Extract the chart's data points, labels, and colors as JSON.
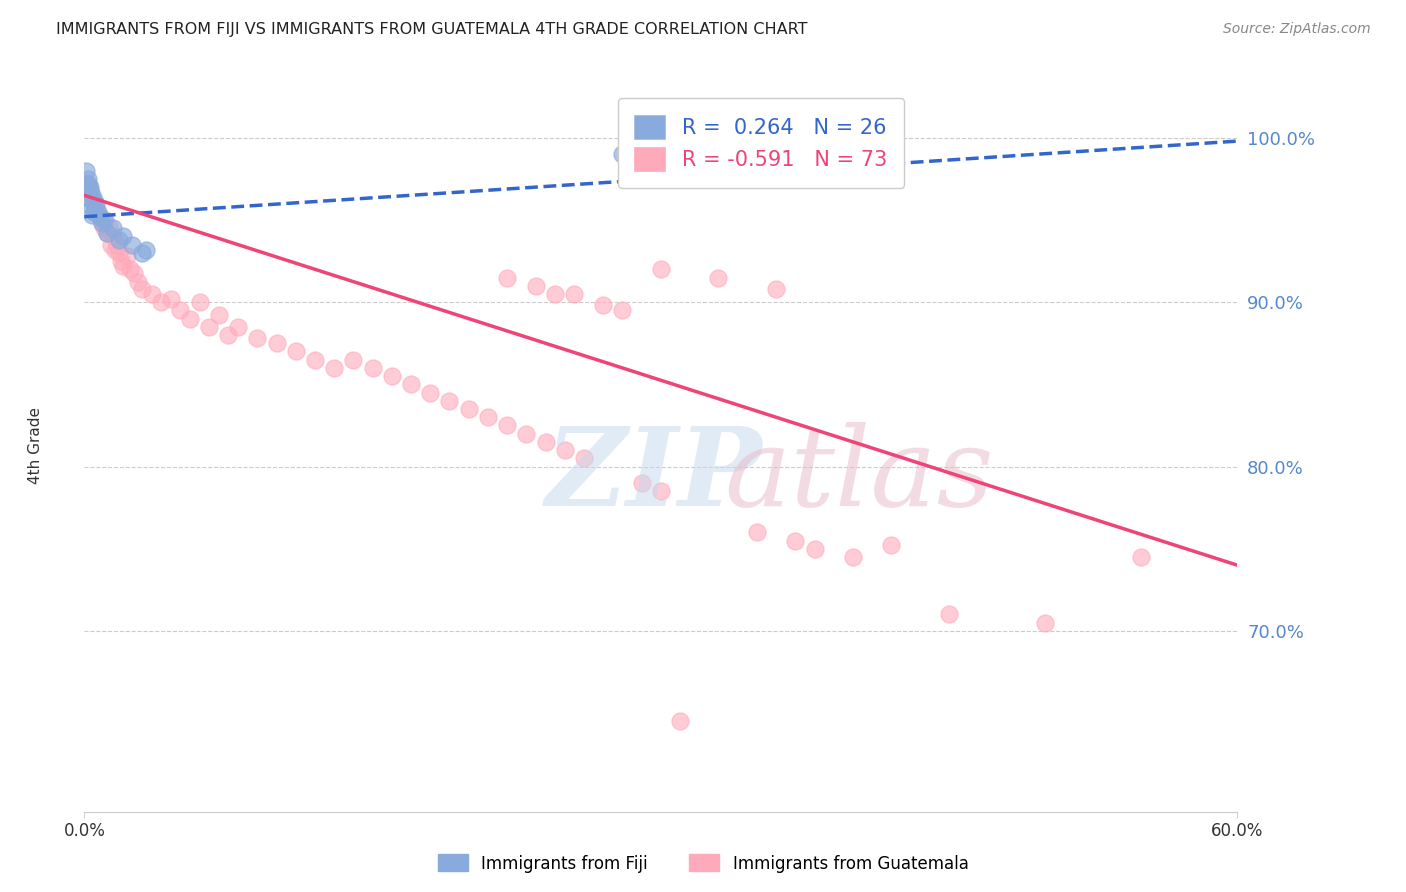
{
  "title": "IMMIGRANTS FROM FIJI VS IMMIGRANTS FROM GUATEMALA 4TH GRADE CORRELATION CHART",
  "source": "Source: ZipAtlas.com",
  "ylabel": "4th Grade",
  "xlim": [
    0.0,
    60.0
  ],
  "ylim": [
    59.0,
    103.5
  ],
  "ytick_vals": [
    70.0,
    80.0,
    90.0,
    100.0
  ],
  "xtick_vals": [
    0.0,
    60.0
  ],
  "fiji_color": "#88aadd",
  "guatemala_color": "#ffaabb",
  "fiji_line_color": "#3366cc",
  "guatemala_line_color": "#ee4477",
  "fiji_R": 0.264,
  "fiji_N": 26,
  "guatemala_R": -0.591,
  "guatemala_N": 73,
  "axis_label_color": "#5588cc",
  "fiji_scatter_x": [
    0.1,
    0.2,
    0.3,
    0.3,
    0.4,
    0.4,
    0.5,
    0.5,
    0.6,
    0.7,
    0.8,
    0.9,
    1.0,
    1.2,
    1.5,
    1.8,
    2.0,
    2.5,
    3.0,
    3.2,
    0.2,
    0.3,
    0.4,
    28.0,
    33.0,
    36.0
  ],
  "fiji_scatter_y": [
    98.0,
    97.5,
    97.0,
    96.8,
    96.5,
    95.8,
    96.2,
    95.5,
    96.0,
    95.5,
    95.2,
    94.8,
    95.0,
    94.2,
    94.5,
    93.8,
    94.0,
    93.5,
    93.0,
    93.2,
    97.2,
    96.3,
    95.3,
    99.0,
    99.5,
    99.5
  ],
  "guatemala_scatter_x": [
    0.1,
    0.2,
    0.3,
    0.4,
    0.5,
    0.6,
    0.7,
    0.8,
    0.9,
    1.0,
    1.1,
    1.2,
    1.3,
    1.4,
    1.5,
    1.6,
    1.7,
    1.8,
    1.9,
    2.0,
    2.2,
    2.4,
    2.6,
    2.8,
    3.0,
    3.5,
    4.0,
    4.5,
    5.0,
    6.0,
    7.0,
    8.0,
    9.0,
    10.0,
    11.0,
    12.0,
    13.0,
    14.0,
    15.0,
    16.0,
    17.0,
    18.0,
    19.0,
    20.0,
    21.0,
    22.0,
    23.0,
    24.0,
    25.0,
    26.0,
    22.0,
    23.5,
    24.5,
    25.5,
    27.0,
    28.0,
    29.0,
    30.0,
    35.0,
    37.0,
    38.0,
    40.0,
    42.0,
    45.0,
    50.0,
    55.0,
    30.0,
    33.0,
    36.0,
    5.5,
    6.5,
    7.5,
    31.0
  ],
  "guatemala_scatter_y": [
    97.2,
    96.8,
    96.5,
    96.2,
    96.0,
    95.7,
    95.4,
    95.1,
    94.8,
    94.5,
    95.0,
    94.2,
    94.6,
    93.5,
    94.0,
    93.2,
    93.5,
    93.0,
    92.5,
    92.2,
    92.8,
    92.0,
    91.8,
    91.2,
    90.8,
    90.5,
    90.0,
    90.2,
    89.5,
    90.0,
    89.2,
    88.5,
    87.8,
    87.5,
    87.0,
    86.5,
    86.0,
    86.5,
    86.0,
    85.5,
    85.0,
    84.5,
    84.0,
    83.5,
    83.0,
    82.5,
    82.0,
    81.5,
    81.0,
    80.5,
    91.5,
    91.0,
    90.5,
    90.5,
    89.8,
    89.5,
    79.0,
    78.5,
    76.0,
    75.5,
    75.0,
    74.5,
    75.2,
    71.0,
    70.5,
    74.5,
    92.0,
    91.5,
    90.8,
    89.0,
    88.5,
    88.0,
    64.5
  ],
  "fiji_trendline_x": [
    0.0,
    60.0
  ],
  "fiji_trendline_y": [
    95.2,
    99.8
  ],
  "guatemala_trendline_x": [
    0.0,
    60.0
  ],
  "guatemala_trendline_y": [
    96.5,
    74.0
  ]
}
